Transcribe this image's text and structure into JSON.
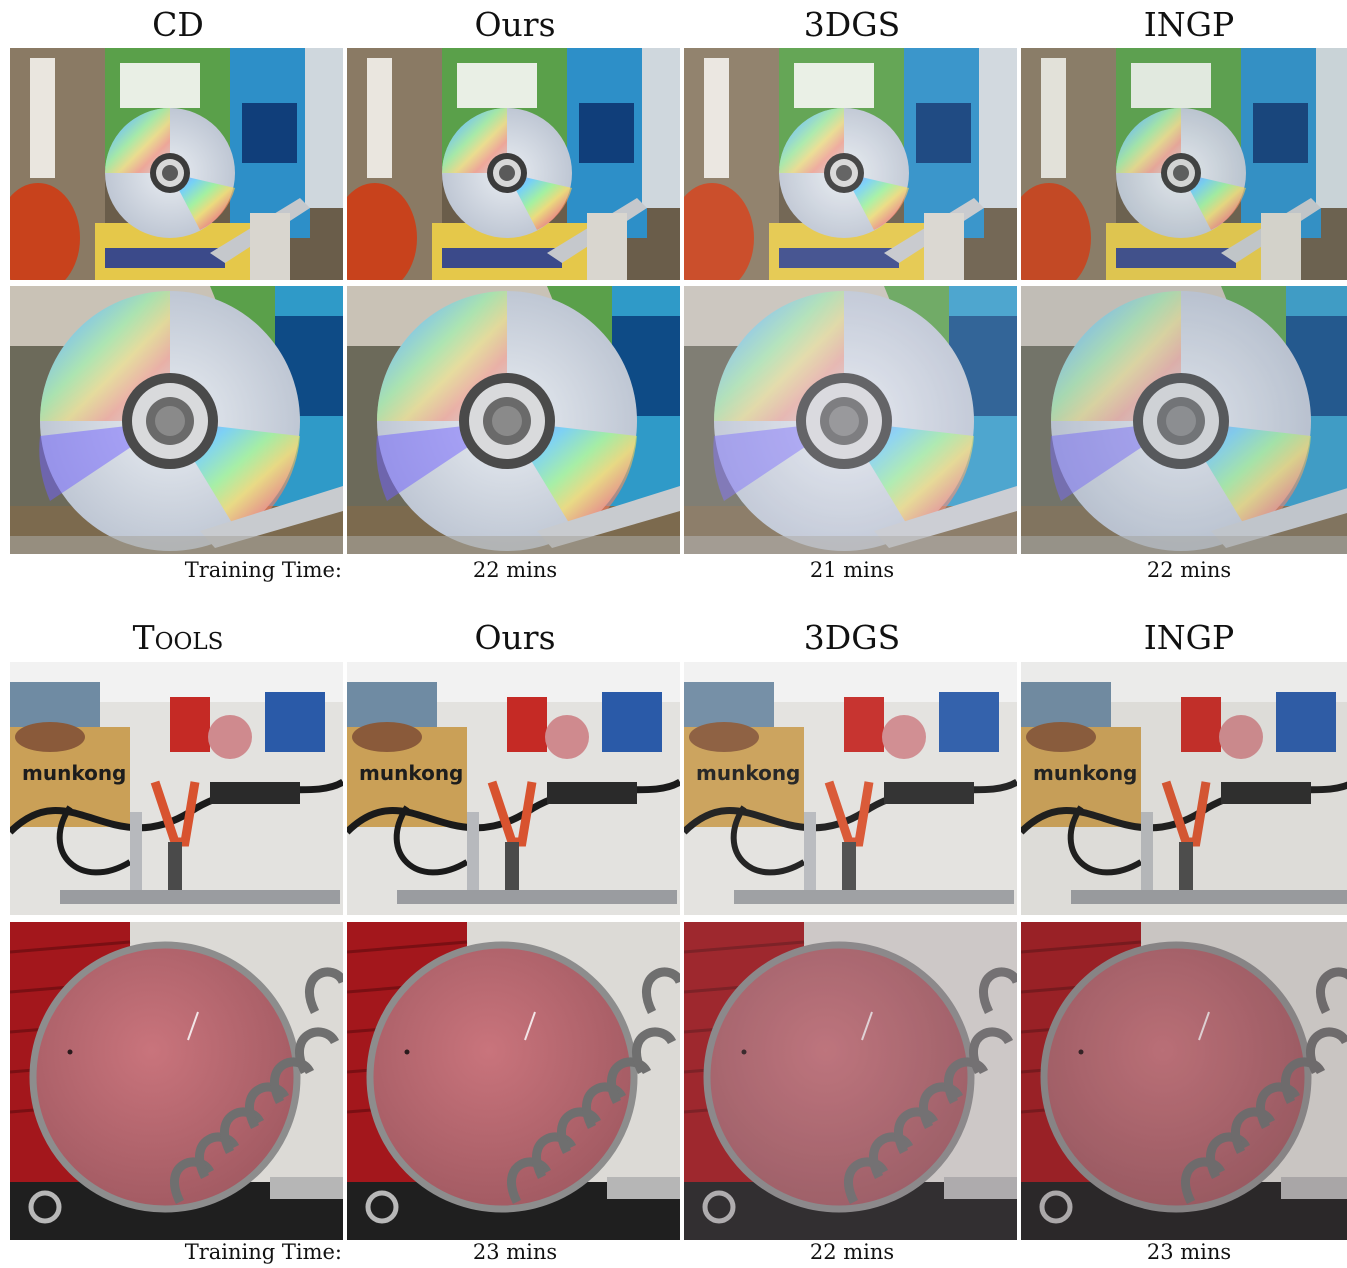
{
  "sections": [
    {
      "scene": "CD",
      "columns": [
        "Ours",
        "3DGS",
        "INGP"
      ],
      "training_label": "Training Time:",
      "times": [
        "22 mins",
        "21 mins",
        "22 mins"
      ]
    },
    {
      "scene": "Tools",
      "columns": [
        "Ours",
        "3DGS",
        "INGP"
      ],
      "training_label": "Training Time:",
      "times": [
        "23 mins",
        "22 mins",
        "23 mins"
      ]
    }
  ]
}
